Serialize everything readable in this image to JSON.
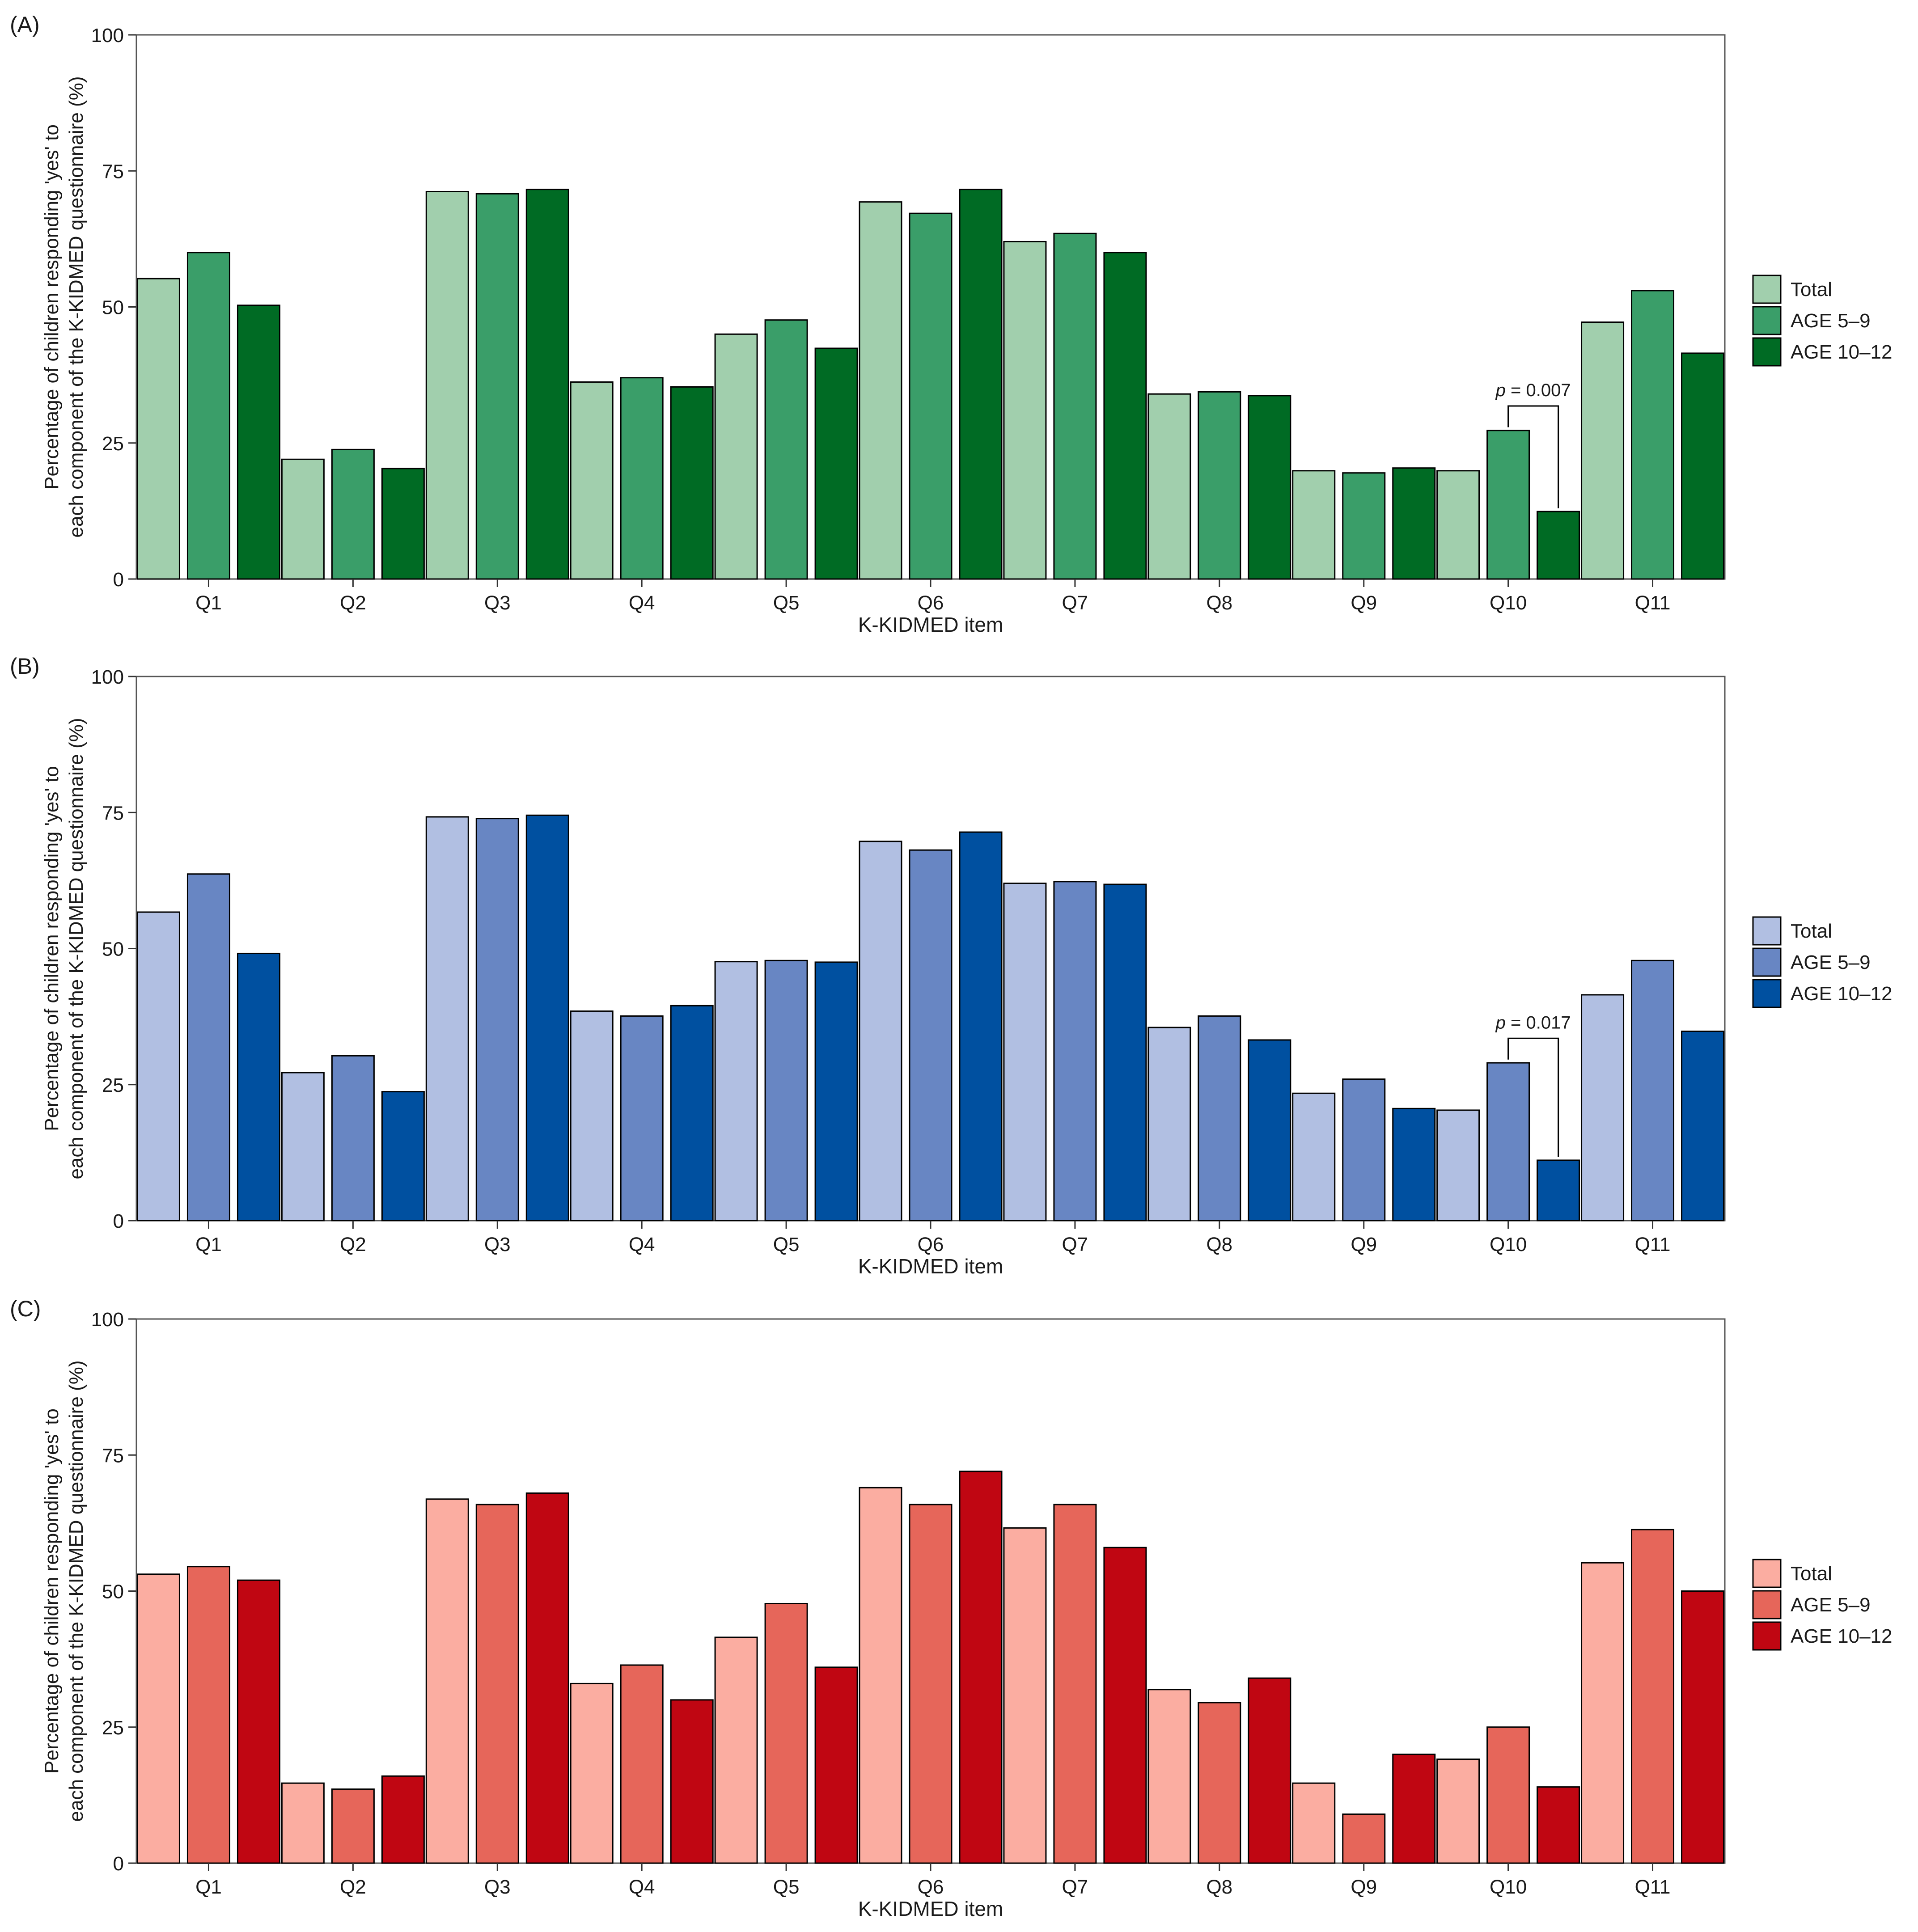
{
  "figure": {
    "xlabel": "K-KIDMED item",
    "ylabel_line1": "Percentage of children responding 'yes' to",
    "ylabel_line2": "each component of the K-KIDMED questionnaire (%)"
  },
  "chart_data": [
    {
      "type": "bar",
      "panel_label": "(A)",
      "categories": [
        "Q1",
        "Q2",
        "Q3",
        "Q4",
        "Q5",
        "Q6",
        "Q7",
        "Q8",
        "Q9",
        "Q10",
        "Q11"
      ],
      "series": [
        {
          "name": "Total",
          "color": "#a1cfad",
          "values": [
            55.2,
            22.0,
            71.2,
            36.2,
            45.0,
            69.3,
            62.0,
            34.0,
            19.9,
            19.9,
            47.2
          ]
        },
        {
          "name": "AGE 5–9",
          "color": "#3a9e69",
          "values": [
            60.0,
            23.8,
            70.8,
            37.0,
            47.6,
            67.2,
            63.5,
            34.4,
            19.5,
            27.3,
            53.0
          ]
        },
        {
          "name": "AGE 10–12",
          "color": "#006b24",
          "values": [
            50.3,
            20.3,
            71.6,
            35.3,
            42.4,
            71.6,
            60.0,
            33.7,
            20.4,
            12.4,
            41.5
          ]
        }
      ],
      "annotation": {
        "category": "Q10",
        "p_symbol": "p",
        "p_text": " = 0.007",
        "from_series": 1,
        "to_series": 2
      },
      "ylim": [
        0,
        100
      ],
      "yticks": [
        "0",
        "25",
        "50",
        "75",
        "100"
      ]
    },
    {
      "type": "bar",
      "panel_label": "(B)",
      "categories": [
        "Q1",
        "Q2",
        "Q3",
        "Q4",
        "Q5",
        "Q6",
        "Q7",
        "Q8",
        "Q9",
        "Q10",
        "Q11"
      ],
      "series": [
        {
          "name": "Total",
          "color": "#b1bfe2",
          "values": [
            56.7,
            27.2,
            74.2,
            38.5,
            47.6,
            69.7,
            62.0,
            35.5,
            23.4,
            20.3,
            41.5
          ]
        },
        {
          "name": "AGE 5–9",
          "color": "#6886c3",
          "values": [
            63.7,
            30.3,
            73.9,
            37.6,
            47.8,
            68.1,
            62.3,
            37.6,
            26.0,
            29.0,
            47.8
          ]
        },
        {
          "name": "AGE 10–12",
          "color": "#0050a0",
          "values": [
            49.1,
            23.7,
            74.5,
            39.5,
            47.5,
            71.4,
            61.8,
            33.2,
            20.6,
            11.1,
            34.8
          ]
        }
      ],
      "annotation": {
        "category": "Q10",
        "p_symbol": "p",
        "p_text": " = 0.017",
        "from_series": 1,
        "to_series": 2
      },
      "ylim": [
        0,
        100
      ],
      "yticks": [
        "0",
        "25",
        "50",
        "75",
        "100"
      ]
    },
    {
      "type": "bar",
      "panel_label": "(C)",
      "categories": [
        "Q1",
        "Q2",
        "Q3",
        "Q4",
        "Q5",
        "Q6",
        "Q7",
        "Q8",
        "Q9",
        "Q10",
        "Q11"
      ],
      "series": [
        {
          "name": "Total",
          "color": "#fbada1",
          "values": [
            53.1,
            14.7,
            66.9,
            33.0,
            41.5,
            69.0,
            61.6,
            31.9,
            14.7,
            19.1,
            55.2
          ]
        },
        {
          "name": "AGE 5–9",
          "color": "#e6665a",
          "values": [
            54.5,
            13.6,
            65.9,
            36.4,
            47.7,
            65.9,
            65.9,
            29.5,
            9.0,
            25.0,
            61.3
          ]
        },
        {
          "name": "AGE 10–12",
          "color": "#c00612",
          "values": [
            52.0,
            16.0,
            68.0,
            30.0,
            36.0,
            72.0,
            58.0,
            34.0,
            20.0,
            14.0,
            50.0
          ]
        }
      ],
      "ylim": [
        0,
        100
      ],
      "yticks": [
        "0",
        "25",
        "50",
        "75",
        "100"
      ]
    }
  ]
}
